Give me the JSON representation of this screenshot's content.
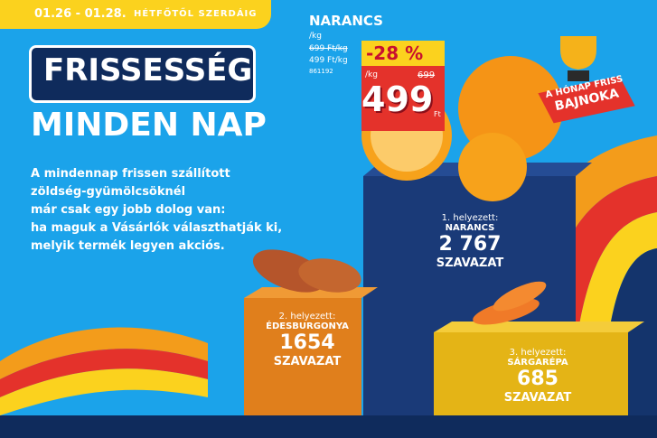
{
  "banner": {
    "dates": "01.26 - 01.28.",
    "days": "HÉTFŐTŐL SZERDÁIG"
  },
  "headline": {
    "line1": "FRISSESSÉG",
    "line2": "MINDEN NAP"
  },
  "intro": [
    "A mindennap frissen szállított",
    "zöldség-gyümölcsöknél",
    "már csak egy jobb dolog van:",
    "ha maguk a Vásárlók választhatják ki,",
    "melyik termék legyen akciós."
  ],
  "product": {
    "name": "NARANCS",
    "unit": "/kg",
    "old_unit_price": "699 Ft/kg",
    "new_unit_price": "499 Ft/kg",
    "code": "861192"
  },
  "price_tag": {
    "discount": "-28 %",
    "unit": "/kg",
    "old_price": "699",
    "price": "499",
    "currency": "Ft"
  },
  "badge": {
    "line1": "A HÓNAP FRISS",
    "line2": "BAJNOKA"
  },
  "podium": [
    {
      "place": "1. helyezett:",
      "product": "NARANCS",
      "votes": "2 767",
      "votes_label": "SZAVAZAT"
    },
    {
      "place": "2. helyezett:",
      "product": "ÉDESBURGONYA",
      "votes": "1654",
      "votes_label": "SZAVAZAT"
    },
    {
      "place": "3. helyezett:",
      "product": "SÁRGARÉPA",
      "votes": "685",
      "votes_label": "SZAVAZAT"
    }
  ]
}
